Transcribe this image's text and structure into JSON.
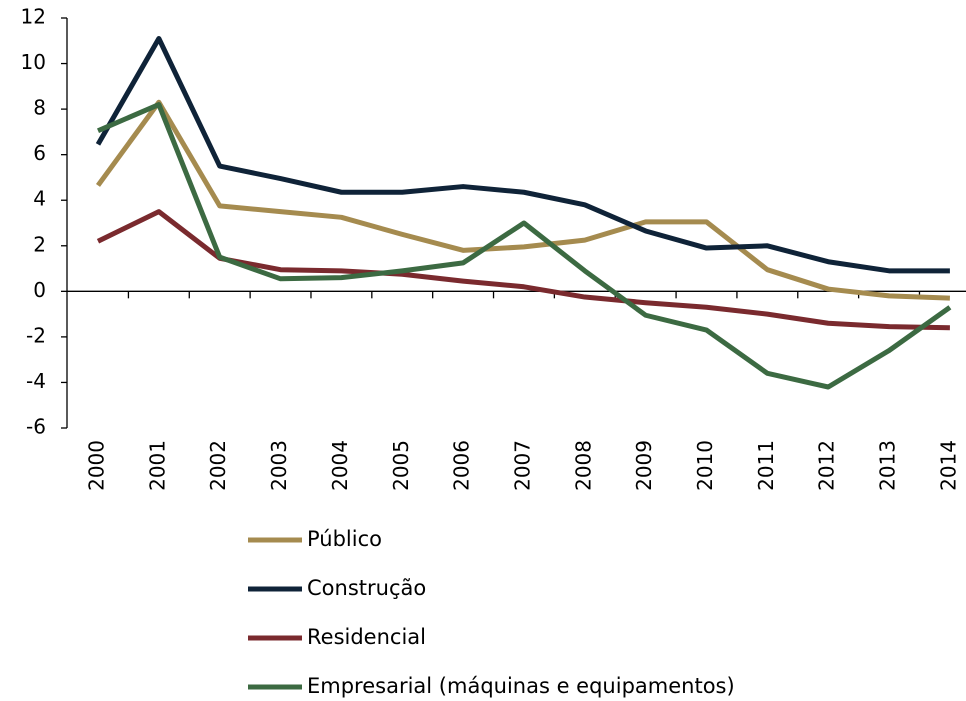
{
  "chart_data": {
    "type": "line",
    "categories": [
      "2000",
      "2001",
      "2002",
      "2003",
      "2004",
      "2005",
      "2006",
      "2007",
      "2008",
      "2009",
      "2010",
      "2011",
      "2012",
      "2013",
      "2014"
    ],
    "series": [
      {
        "name": "Público",
        "color": "#a58b4f",
        "values": [
          4.65,
          8.3,
          3.75,
          3.5,
          3.25,
          2.5,
          1.8,
          1.95,
          2.25,
          3.05,
          3.05,
          0.95,
          0.1,
          -0.2,
          -0.3
        ]
      },
      {
        "name": "Construção",
        "color": "#0f2338",
        "values": [
          6.45,
          11.1,
          5.5,
          4.95,
          4.35,
          4.35,
          4.6,
          4.35,
          3.8,
          2.65,
          1.9,
          2.0,
          1.3,
          0.9,
          0.9
        ]
      },
      {
        "name": "Residencial",
        "color": "#7a2a2e",
        "values": [
          2.2,
          3.5,
          1.45,
          0.95,
          0.9,
          0.75,
          0.45,
          0.2,
          -0.25,
          -0.5,
          -0.7,
          -1.0,
          -1.4,
          -1.55,
          -1.6
        ]
      },
      {
        "name": "Empresarial (máquinas e equipamentos)",
        "color": "#3c6a42",
        "values": [
          7.05,
          8.2,
          1.5,
          0.55,
          0.6,
          0.9,
          1.25,
          3.0,
          0.9,
          -1.05,
          -1.7,
          -3.6,
          -4.2,
          -2.6,
          -0.7
        ]
      }
    ],
    "ylim": [
      -6,
      12
    ],
    "yticks": [
      -6,
      -4,
      -2,
      0,
      2,
      4,
      6,
      8,
      10,
      12
    ]
  }
}
